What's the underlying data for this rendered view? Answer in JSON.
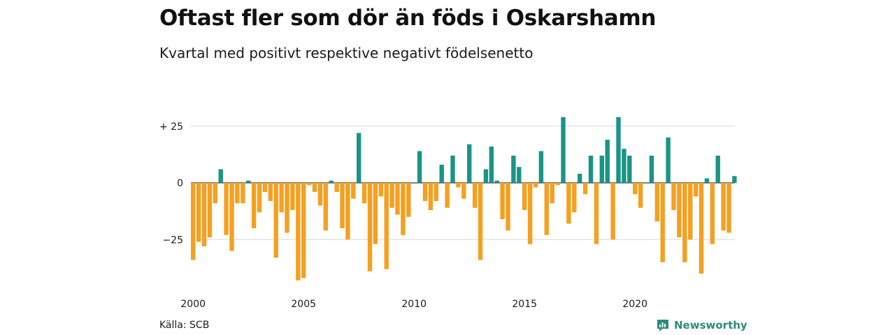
{
  "title": "Oftast fler som dör än föds i Oskarshamn",
  "subtitle": "Kvartal med positivt respektive negativt födelsenetto",
  "source": "Källa: SCB",
  "brand": {
    "name": "Newsworthy",
    "icon": "newsworthy-logo-icon"
  },
  "colors": {
    "positive": "#1a9485",
    "negative": "#f5a020",
    "grid": "#d9d9d9",
    "zero_line": "#333333"
  },
  "chart_data": {
    "type": "bar",
    "x_start_year": 2000,
    "periods_per_year": 4,
    "ylim": [
      -45,
      32
    ],
    "y_ticks": [
      {
        "value": 25,
        "label": "+ 25"
      },
      {
        "value": 0,
        "label": "0"
      },
      {
        "value": -25,
        "label": "−25"
      }
    ],
    "x_ticks": [
      {
        "year": 2000,
        "label": "2000"
      },
      {
        "year": 2005,
        "label": "2005"
      },
      {
        "year": 2010,
        "label": "2010"
      },
      {
        "year": 2015,
        "label": "2015"
      },
      {
        "year": 2020,
        "label": "2020"
      }
    ],
    "grid": true,
    "values": [
      -34,
      -26,
      -28,
      -24,
      -9,
      6,
      -23,
      -30,
      -9,
      -9,
      1,
      -20,
      -13,
      -4,
      -8,
      -33,
      -13,
      -22,
      -12,
      -43,
      -42,
      -1,
      -4,
      -10,
      -21,
      1,
      -4,
      -20,
      -25,
      -7,
      22,
      -9,
      -39,
      -27,
      -6,
      -38,
      -11,
      -14,
      -23,
      -15,
      0,
      14,
      -8,
      -12,
      -8,
      8,
      -11,
      12,
      -2,
      -7,
      17,
      -11,
      -34,
      6,
      16,
      1,
      -16,
      -21,
      12,
      7,
      -12,
      -27,
      -2,
      14,
      -23,
      -9,
      -1,
      29,
      -18,
      -13,
      4,
      -5,
      12,
      -27,
      12,
      19,
      -25,
      29,
      15,
      12,
      -5,
      -11,
      0,
      12,
      -17,
      -35,
      20,
      -12,
      -24,
      -35,
      -25,
      -6,
      -40,
      2,
      -27,
      12,
      -21,
      -22,
      3
    ]
  }
}
